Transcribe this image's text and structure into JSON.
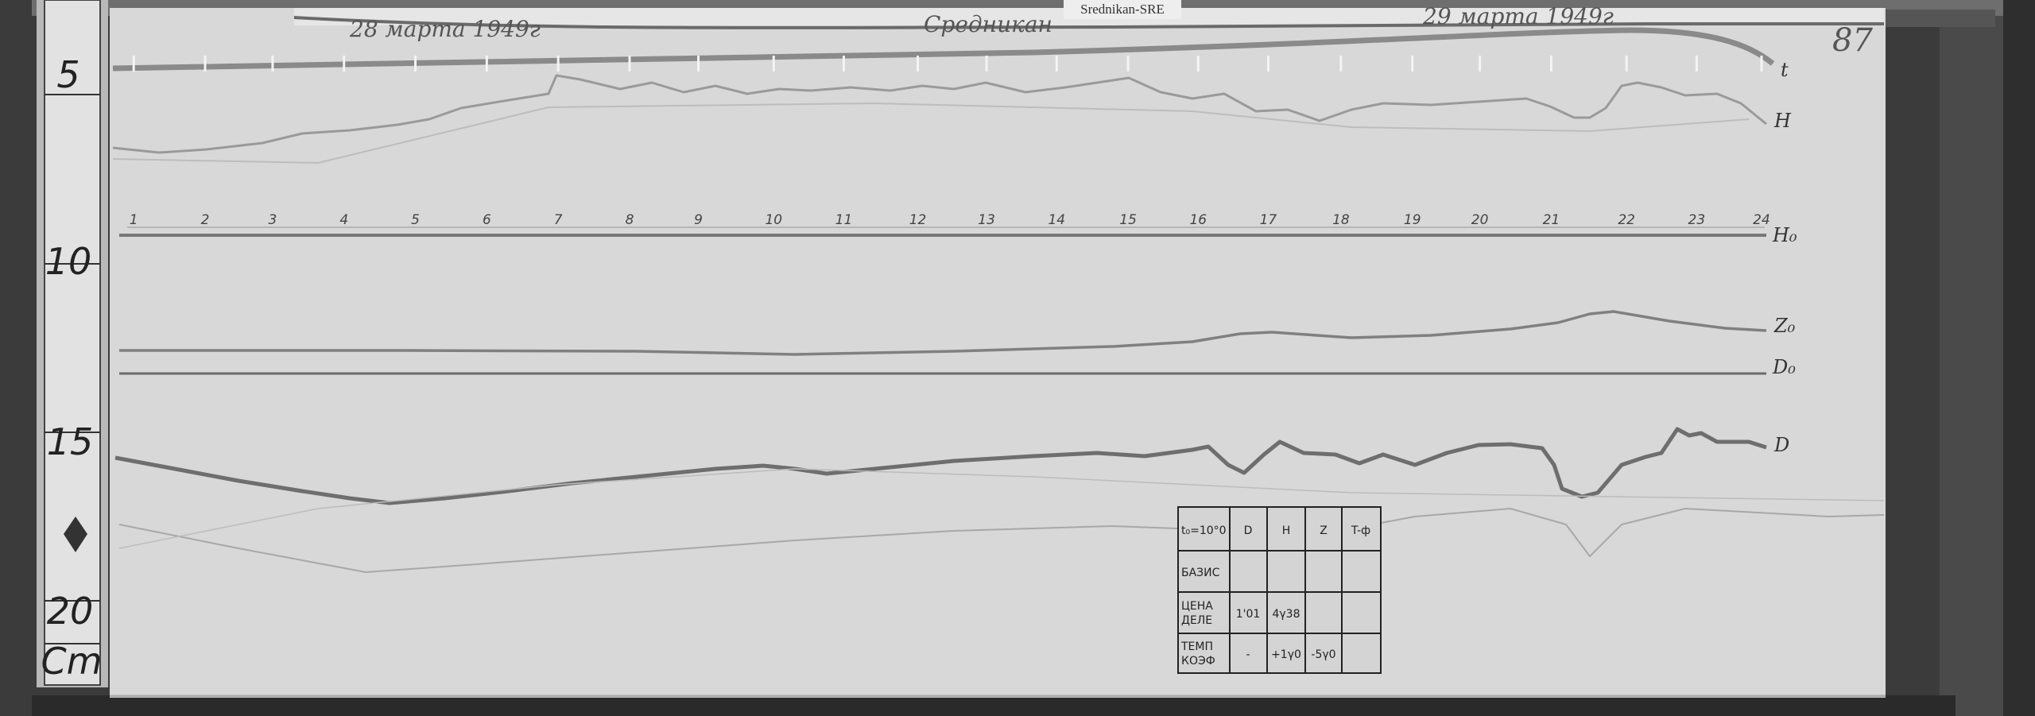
{
  "sticker": {
    "label": "Srednikan-SRE"
  },
  "header": {
    "date_left": "28 марта 1949г",
    "station": "Средникан",
    "date_right": "29 марта 1949г",
    "sheet_number": "87"
  },
  "ruler": {
    "marks": [
      "5",
      "10",
      "15",
      "20"
    ],
    "unit": "Cm"
  },
  "hours": [
    "1",
    "2",
    "3",
    "4",
    "5",
    "6",
    "7",
    "8",
    "9",
    "10",
    "11",
    "12",
    "13",
    "14",
    "15",
    "16",
    "17",
    "18",
    "19",
    "20",
    "21",
    "22",
    "23",
    "24"
  ],
  "trace_labels": {
    "t": "t",
    "H": "H",
    "H0": "H₀",
    "Z0": "Z₀",
    "D0": "D₀",
    "D": "D"
  },
  "table": {
    "header": [
      "t₀=10°0",
      "D",
      "H",
      "Z",
      "T-ф"
    ],
    "rows": [
      {
        "label": "БАЗИС",
        "cells": [
          "",
          "",
          "",
          ""
        ]
      },
      {
        "label1": "ЦЕНА",
        "label2": "ДЕЛЕ",
        "cells": [
          "1'01",
          "4γ38",
          "",
          ""
        ]
      },
      {
        "label1": "ТЕМП",
        "label2": "КОЭФ",
        "cells": [
          "-",
          "+1γ0",
          "-5γ0",
          ""
        ]
      }
    ]
  }
}
